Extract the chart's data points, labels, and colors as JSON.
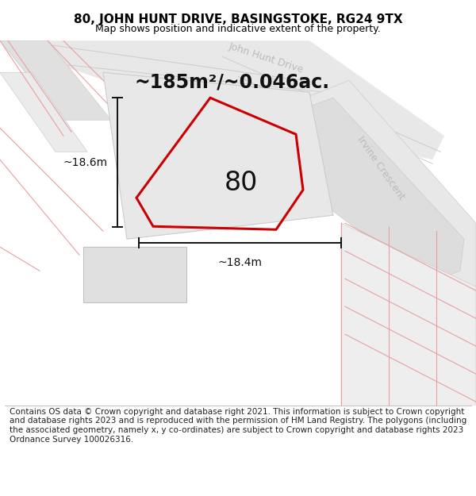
{
  "title": "80, JOHN HUNT DRIVE, BASINGSTOKE, RG24 9TX",
  "subtitle": "Map shows position and indicative extent of the property.",
  "footer": "Contains OS data © Crown copyright and database right 2021. This information is subject to Crown copyright and database rights 2023 and is reproduced with the permission of HM Land Registry. The polygons (including the associated geometry, namely x, y co-ordinates) are subject to Crown copyright and database rights 2023 Ordnance Survey 100026316.",
  "area_label": "~185m²/~0.046ac.",
  "number_label": "80",
  "dim_vertical": "~18.6m",
  "dim_horizontal": "~18.4m",
  "street_john_hunt": "John Hunt Drive",
  "street_irvine": "Irvine Crescent",
  "bg_color": "#ffffff",
  "map_bg": "#ffffff",
  "gray_light": "#eeeeee",
  "gray_mid": "#e0e0e0",
  "gray_dark": "#d0d0d0",
  "red_color": "#cc0000",
  "pink_color": "#e8a0a0",
  "dim_color": "#111111",
  "street_color": "#bbbbbb",
  "title_fontsize": 11,
  "subtitle_fontsize": 9,
  "footer_fontsize": 7.5,
  "area_fontsize": 17,
  "number_fontsize": 24,
  "street_fontsize": 9,
  "dim_fontsize": 10
}
